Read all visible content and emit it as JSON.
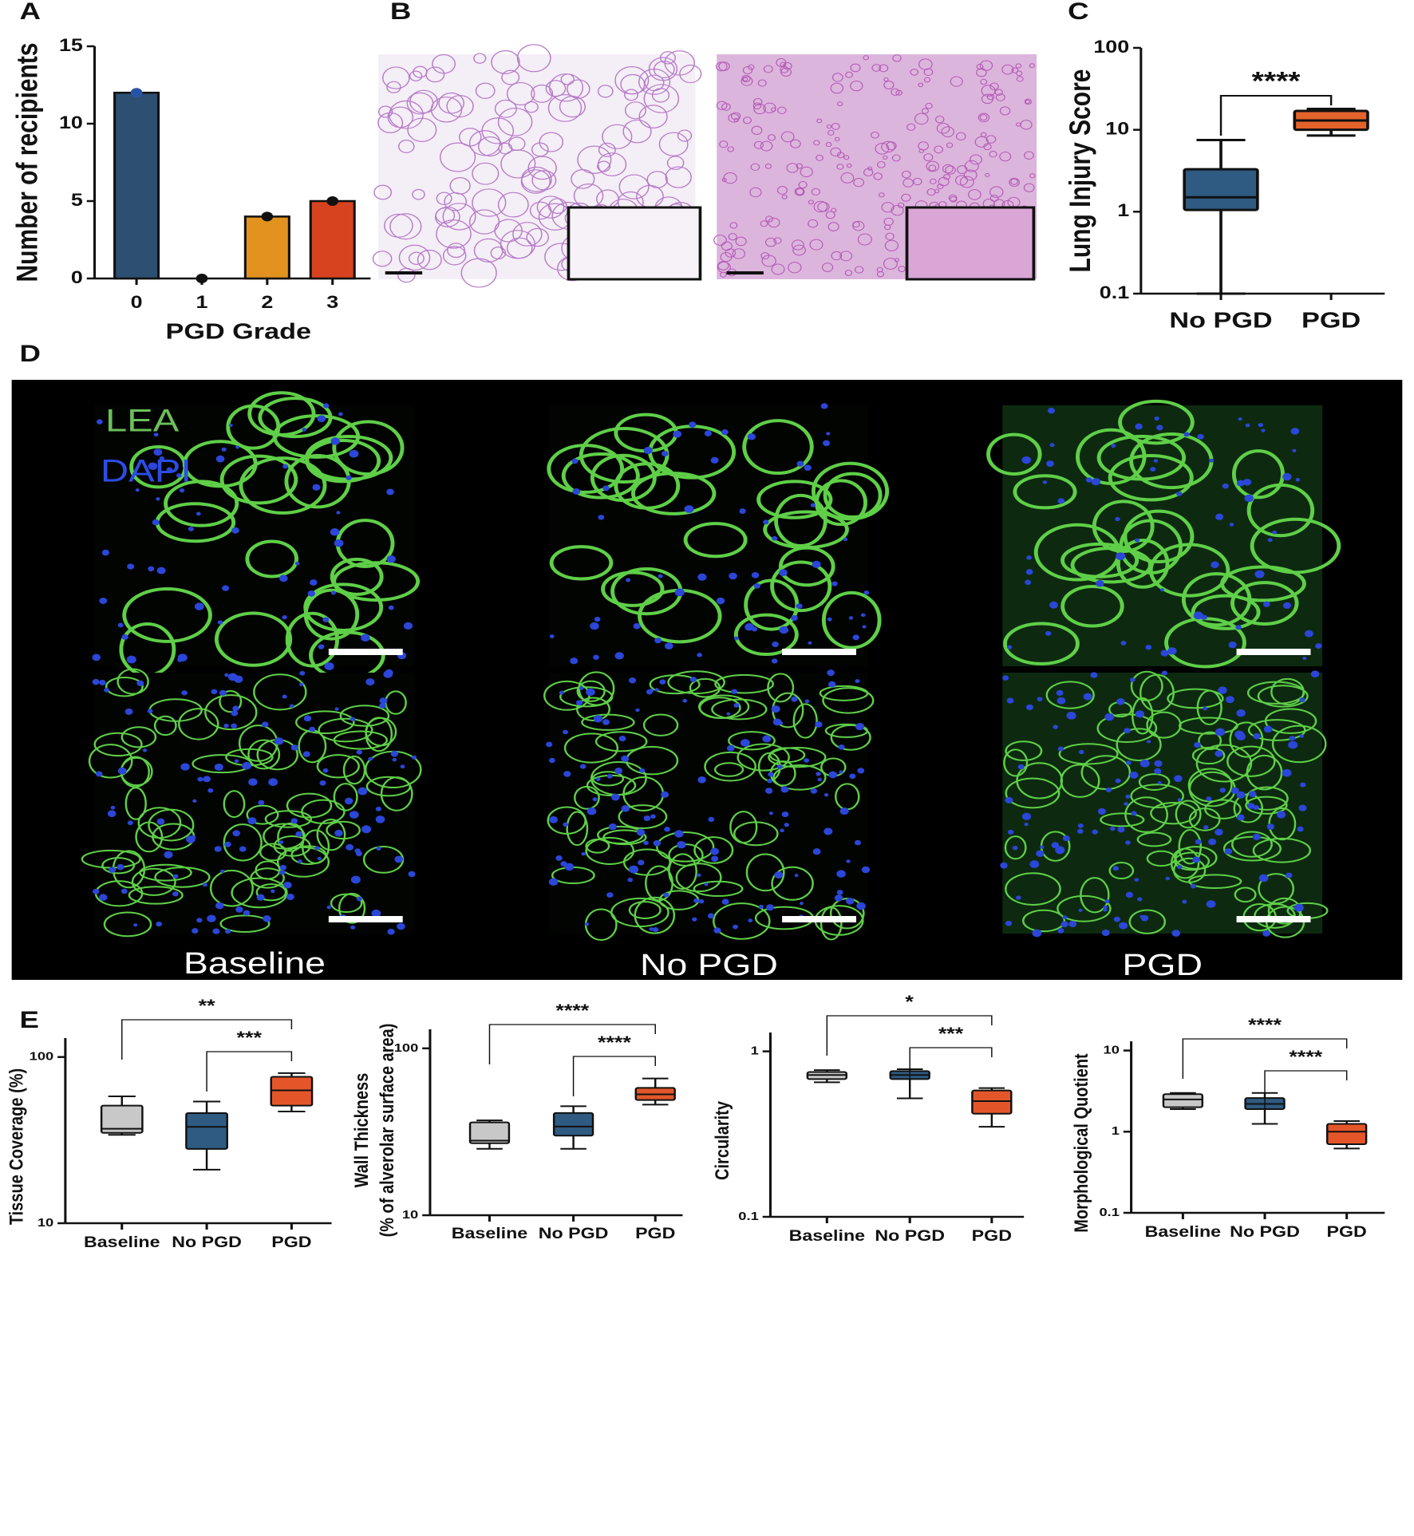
{
  "panel_labels": [
    "A",
    "B",
    "C",
    "D",
    "E"
  ],
  "chart_data": [
    {
      "type": "bar",
      "x_label": "PGD Grade",
      "y_label": "Number of recipients",
      "categories": [
        "0",
        "1",
        "2",
        "3"
      ],
      "values": [
        12,
        0,
        4,
        5
      ],
      "colors": [
        "#2c4f72",
        "#1a1a1a",
        "#e3921f",
        "#d7431e"
      ],
      "ylim": [
        0,
        15
      ],
      "yticks": [
        0,
        5,
        10,
        15
      ]
    },
    {
      "type": "box",
      "y_label": "Lung Injury Score",
      "log_scale": true,
      "categories": [
        "No PGD",
        "PGD"
      ],
      "colors": [
        "#2f5b82",
        "#e4632a"
      ],
      "boxes": [
        {
          "min": 0.1,
          "q1": 1.05,
          "median": 1.5,
          "q3": 3.3,
          "max": 7.5
        },
        {
          "min": 8.5,
          "q1": 10,
          "median": 13,
          "q3": 17,
          "max": 18
        }
      ],
      "annotations": [
        "****"
      ],
      "ylim": [
        0.1,
        100
      ],
      "yticks": [
        0.1,
        1,
        10,
        100
      ]
    },
    {
      "type": "box",
      "y_label": "Tissue Coverage (%)",
      "log_scale": true,
      "categories": [
        "Baseline",
        "No PGD",
        "PGD"
      ],
      "colors": [
        "#c8c8c8",
        "#2f5b82",
        "#e4562a"
      ],
      "boxes": [
        {
          "min": 34,
          "q1": 35,
          "median": 37,
          "q3": 51,
          "max": 58
        },
        {
          "min": 21,
          "q1": 28,
          "median": 38,
          "q3": 46,
          "max": 54
        },
        {
          "min": 47,
          "q1": 51,
          "median": 63,
          "q3": 76,
          "max": 80
        }
      ],
      "annotations": [
        "**",
        "***"
      ],
      "ylim": [
        10,
        130
      ],
      "yticks": [
        10,
        100
      ]
    },
    {
      "type": "box",
      "y_label": [
        "Wall Thickness",
        "(% of alverolar surface area)"
      ],
      "log_scale": true,
      "categories": [
        "Baseline",
        "No PGD",
        "PGD"
      ],
      "colors": [
        "#c8c8c8",
        "#2f5b82",
        "#e4562a"
      ],
      "boxes": [
        {
          "min": 25,
          "q1": 27,
          "median": 28,
          "q3": 36,
          "max": 37
        },
        {
          "min": 25,
          "q1": 30,
          "median": 34,
          "q3": 41,
          "max": 45
        },
        {
          "min": 46,
          "q1": 49,
          "median": 53,
          "q3": 58,
          "max": 66
        }
      ],
      "annotations": [
        "****",
        "****"
      ],
      "ylim": [
        10,
        130
      ],
      "yticks": [
        10,
        100
      ]
    },
    {
      "type": "box",
      "y_label": "Circularity",
      "log_scale": true,
      "categories": [
        "Baseline",
        "No PGD",
        "PGD"
      ],
      "colors": [
        "#c8c8c8",
        "#2f5b82",
        "#e4562a"
      ],
      "boxes": [
        {
          "min": 0.65,
          "q1": 0.68,
          "median": 0.72,
          "q3": 0.75,
          "max": 0.77
        },
        {
          "min": 0.52,
          "q1": 0.68,
          "median": 0.72,
          "q3": 0.76,
          "max": 0.78
        },
        {
          "min": 0.35,
          "q1": 0.42,
          "median": 0.5,
          "q3": 0.58,
          "max": 0.6
        }
      ],
      "annotations": [
        "*",
        "***"
      ],
      "ylim": [
        0.1,
        1.3
      ],
      "yticks": [
        0.1,
        1
      ]
    },
    {
      "type": "box",
      "y_label": "Morphological Quotient",
      "log_scale": true,
      "categories": [
        "Baseline",
        "No PGD",
        "PGD"
      ],
      "colors": [
        "#c8c8c8",
        "#2f5b82",
        "#e4562a"
      ],
      "boxes": [
        {
          "min": 1.9,
          "q1": 2.0,
          "median": 2.5,
          "q3": 2.9,
          "max": 3.0
        },
        {
          "min": 1.25,
          "q1": 1.9,
          "median": 2.2,
          "q3": 2.6,
          "max": 3.0
        },
        {
          "min": 0.62,
          "q1": 0.7,
          "median": 1.0,
          "q3": 1.25,
          "max": 1.35
        }
      ],
      "annotations": [
        "****",
        "****"
      ],
      "ylim": [
        0.1,
        13
      ],
      "yticks": [
        0.1,
        1,
        10
      ]
    }
  ],
  "micrographs": {
    "stains": [
      "LEA",
      "DAPI"
    ],
    "groups": [
      "Baseline",
      "No PGD",
      "PGD"
    ]
  }
}
